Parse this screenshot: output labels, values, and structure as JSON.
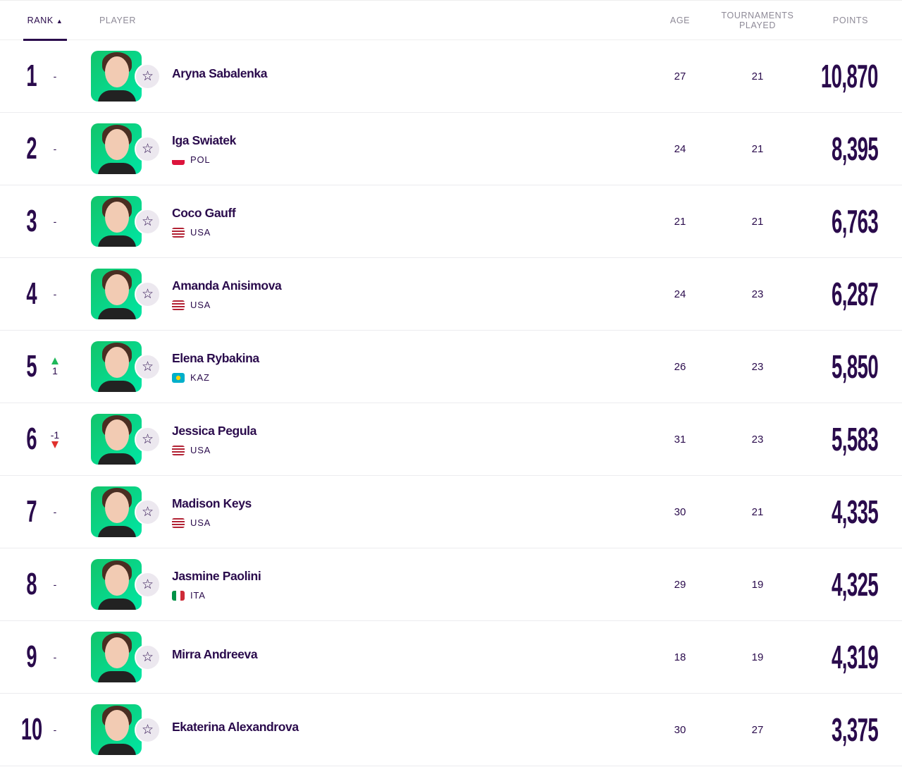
{
  "header": {
    "rank": "RANK",
    "player": "PLAYER",
    "age": "AGE",
    "tournaments": "TOURNAMENTS PLAYED",
    "points": "POINTS",
    "sort_icon": "triangle-up"
  },
  "colors": {
    "primary": "#2a0b4c",
    "up": "#1fb85a",
    "down": "#e0302c",
    "avatar_bg": "#12c46a"
  },
  "rows": [
    {
      "rank": "1",
      "move": "-",
      "dir": "none",
      "name": "Aryna Sabalenka",
      "country": "",
      "age": "27",
      "tp": "21",
      "points": "10,870"
    },
    {
      "rank": "2",
      "move": "-",
      "dir": "none",
      "name": "Iga Swiatek",
      "country": "POL",
      "age": "24",
      "tp": "21",
      "points": "8,395"
    },
    {
      "rank": "3",
      "move": "-",
      "dir": "none",
      "name": "Coco Gauff",
      "country": "USA",
      "age": "21",
      "tp": "21",
      "points": "6,763"
    },
    {
      "rank": "4",
      "move": "-",
      "dir": "none",
      "name": "Amanda Anisimova",
      "country": "USA",
      "age": "24",
      "tp": "23",
      "points": "6,287"
    },
    {
      "rank": "5",
      "move": "1",
      "dir": "up",
      "name": "Elena Rybakina",
      "country": "KAZ",
      "age": "26",
      "tp": "23",
      "points": "5,850"
    },
    {
      "rank": "6",
      "move": "-1",
      "dir": "down",
      "name": "Jessica Pegula",
      "country": "USA",
      "age": "31",
      "tp": "23",
      "points": "5,583"
    },
    {
      "rank": "7",
      "move": "-",
      "dir": "none",
      "name": "Madison Keys",
      "country": "USA",
      "age": "30",
      "tp": "21",
      "points": "4,335"
    },
    {
      "rank": "8",
      "move": "-",
      "dir": "none",
      "name": "Jasmine Paolini",
      "country": "ITA",
      "age": "29",
      "tp": "19",
      "points": "4,325"
    },
    {
      "rank": "9",
      "move": "-",
      "dir": "none",
      "name": "Mirra Andreeva",
      "country": "",
      "age": "18",
      "tp": "19",
      "points": "4,319"
    },
    {
      "rank": "10",
      "move": "-",
      "dir": "none",
      "name": "Ekaterina Alexandrova",
      "country": "",
      "age": "30",
      "tp": "27",
      "points": "3,375"
    }
  ]
}
